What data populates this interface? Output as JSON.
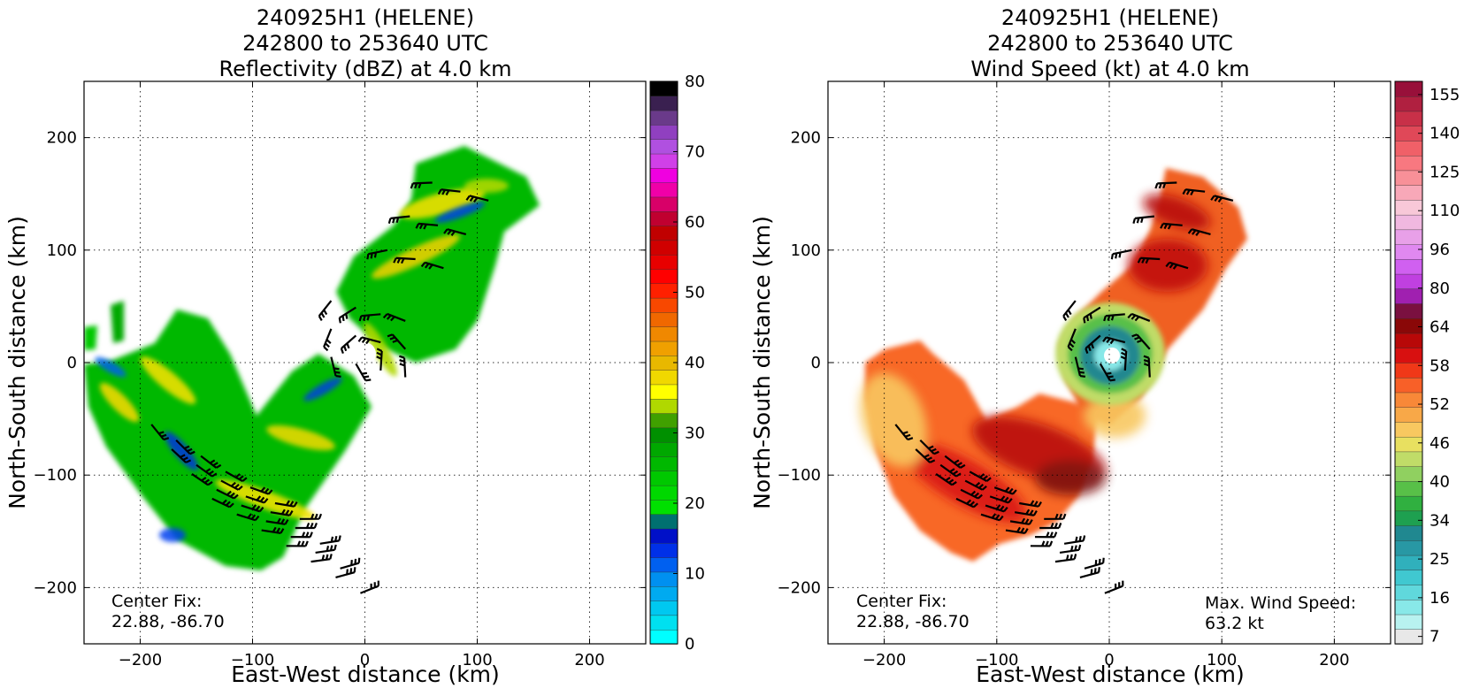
{
  "chart_data": [
    {
      "type": "heatmap",
      "title_lines": [
        "240925H1 (HELENE)",
        "242800 to 253640 UTC",
        "Reflectivity (dBZ) at 4.0 km"
      ],
      "xlabel": "East-West distance (km)",
      "ylabel": "North-South distance (km)",
      "xlim": [
        -250,
        250
      ],
      "ylim": [
        -250,
        250
      ],
      "x_ticks": [
        -200,
        -100,
        0,
        100,
        200
      ],
      "y_ticks": [
        -200,
        -100,
        0,
        100,
        200
      ],
      "x_tick_labels": [
        "−200",
        "−100",
        "0",
        "100",
        "200"
      ],
      "y_tick_labels": [
        "−200",
        "−100",
        "0",
        "100",
        "200"
      ],
      "grid": true,
      "colorbar": {
        "min": 0,
        "max": 80,
        "tick_labels": [
          "0",
          "10",
          "20",
          "30",
          "40",
          "50",
          "60",
          "70",
          "80"
        ],
        "colors": [
          "#00ffff",
          "#00e0f0",
          "#00c8f0",
          "#00aaf0",
          "#0090f0",
          "#0060f0",
          "#0030e8",
          "#0010c8",
          "#007070",
          "#00e000",
          "#00d800",
          "#00c800",
          "#00b800",
          "#00a800",
          "#009000",
          "#40a000",
          "#b0d800",
          "#ffff00",
          "#f0d800",
          "#e8b800",
          "#f0a000",
          "#f08800",
          "#f06800",
          "#f84800",
          "#ff2000",
          "#ff0000",
          "#e80000",
          "#d00000",
          "#c00000",
          "#c00030",
          "#d80068",
          "#f000a8",
          "#f000e0",
          "#d040e8",
          "#b050e0",
          "#9040c0",
          "#6a3a8a",
          "#3a2050",
          "#000000"
        ]
      },
      "annotations": [
        "Center Fix:",
        "22.88, -86.70"
      ],
      "wind_barbs": true
    },
    {
      "type": "heatmap",
      "title_lines": [
        "240925H1 (HELENE)",
        "242800 to 253640 UTC",
        "Wind Speed (kt) at 4.0 km"
      ],
      "xlabel": "East-West distance (km)",
      "ylabel": "North-South distance (km)",
      "xlim": [
        -250,
        250
      ],
      "ylim": [
        -250,
        250
      ],
      "x_ticks": [
        -200,
        -100,
        0,
        100,
        200
      ],
      "y_ticks": [
        -200,
        -100,
        0,
        100,
        200
      ],
      "x_tick_labels": [
        "−200",
        "−100",
        "0",
        "100",
        "200"
      ],
      "y_tick_labels": [
        "−200",
        "−100",
        "0",
        "100",
        "200"
      ],
      "grid": true,
      "colorbar": {
        "tick_labels": [
          "7",
          "16",
          "25",
          "34",
          "40",
          "46",
          "52",
          "58",
          "64",
          "80",
          "96",
          "110",
          "125",
          "140",
          "155"
        ],
        "colors": [
          "#e8e8e8",
          "#b8f2f0",
          "#88e8e8",
          "#60d8dc",
          "#40c8d0",
          "#30b0bc",
          "#2898a4",
          "#208890",
          "#1ea050",
          "#30b040",
          "#58c048",
          "#90d060",
          "#c0dc68",
          "#e8e060",
          "#f8c860",
          "#f8a848",
          "#f88838",
          "#f86028",
          "#f03818",
          "#d81010",
          "#b80808",
          "#8a0808",
          "#7a1040",
          "#a020b0",
          "#c040e0",
          "#d060f0",
          "#e088f0",
          "#e8a0e8",
          "#f0b8e0",
          "#f8c8d8",
          "#f8a8b8",
          "#f89098",
          "#f87880",
          "#f06068",
          "#e04858",
          "#c83048",
          "#b02040",
          "#98103a"
        ]
      },
      "annotations": [
        "Center Fix:",
        "22.88, -86.70",
        "Max. Wind Speed:",
        "63.2 kt"
      ],
      "wind_barbs": true
    }
  ]
}
